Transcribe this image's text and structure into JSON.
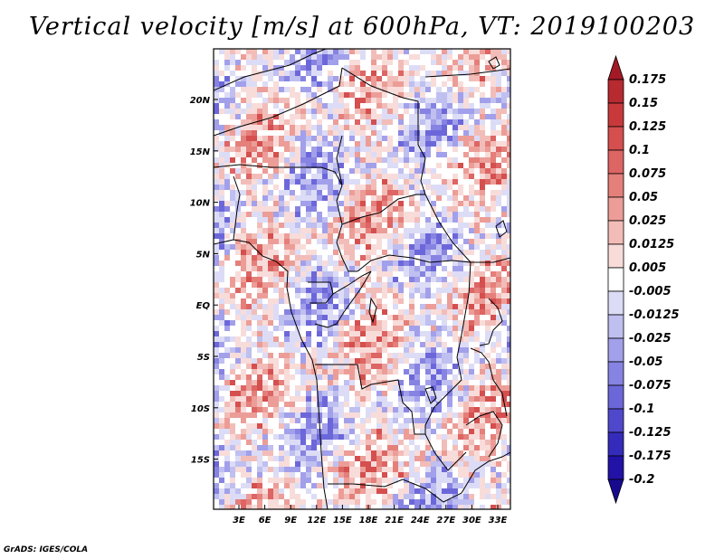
{
  "title": "Vertical velocity [m/s] at 600hPa, VT: 2019100203",
  "credit": "GrADS: IGES/COLA",
  "chart_data": {
    "type": "heatmap",
    "title": "Vertical velocity [m/s] at 600hPa, VT: 2019100203",
    "x_ticks": [
      "3E",
      "6E",
      "9E",
      "12E",
      "15E",
      "18E",
      "21E",
      "24E",
      "27E",
      "30E",
      "33E"
    ],
    "y_ticks": [
      "20N",
      "15N",
      "10N",
      "5N",
      "EQ",
      "5S",
      "10S",
      "15S"
    ],
    "colorbar": {
      "levels": [
        "0.175",
        "0.15",
        "0.125",
        "0.1",
        "0.075",
        "0.05",
        "0.025",
        "0.0125",
        "0.005",
        "-0.005",
        "-0.0125",
        "-0.025",
        "-0.05",
        "-0.075",
        "-0.1",
        "-0.125",
        "-0.175",
        "-0.2"
      ],
      "colors": [
        "#a31a26",
        "#b72a30",
        "#c8393b",
        "#d44f4e",
        "#dd6563",
        "#e47f7a",
        "#ec9d97",
        "#f2bdb8",
        "#f8dcda",
        "#ffffff",
        "#dcdcf6",
        "#bfbff0",
        "#a2a0ea",
        "#8783e2",
        "#6c67d9",
        "#5048cc",
        "#352bbb",
        "#2212a6",
        "#170a8f"
      ]
    }
  }
}
